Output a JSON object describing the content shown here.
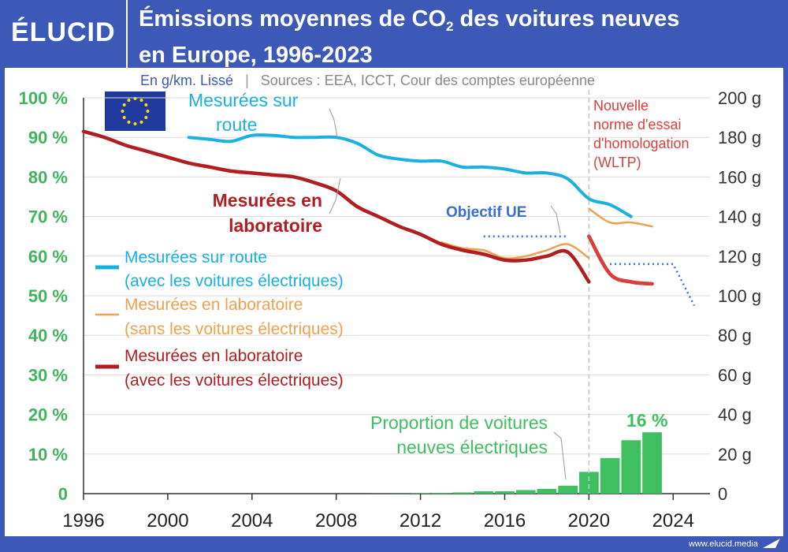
{
  "header": {
    "logo": "ÉLUCID",
    "title_part1": "Émissions moyennes de CO",
    "title_sub": "2",
    "title_part2": " des voitures neuves",
    "title_line2": "en Europe, 1996-2023"
  },
  "subtitle": {
    "unit_note": "En g/km. Lissé",
    "sources": "Sources : EEA, ICCT, Cour des comptes européenne"
  },
  "footer": {
    "url": "www.elucid.media"
  },
  "colors": {
    "brand_blue": "#3c59b8",
    "road": "#1ab0e0",
    "lab_no_ev": "#f0a050",
    "lab_with_ev": "#b11e22",
    "target": "#3a6ed0",
    "ev_share": "#3fbf5f",
    "wltp": "#d9403c",
    "percent_axis": "#3fb45c",
    "gram_axis": "#333333"
  },
  "chart_data": {
    "type": "line",
    "xlim": [
      1996,
      2025
    ],
    "x_ticks": [
      "1996",
      "2000",
      "2004",
      "2008",
      "2012",
      "2016",
      "2020",
      "2024"
    ],
    "y_right": {
      "label": "g/km",
      "lim": [
        0,
        200
      ],
      "ticks": [
        "0",
        "20 g",
        "40 g",
        "60 g",
        "80 g",
        "100 g",
        "120 g",
        "140 g",
        "160 g",
        "180 g",
        "200 g"
      ]
    },
    "y_left": {
      "label": "%",
      "lim": [
        0,
        100
      ],
      "ticks": [
        "0",
        "10 %",
        "20 %",
        "30 %",
        "40 %",
        "50 %",
        "60 %",
        "70 %",
        "80 %",
        "90 %",
        "100 %"
      ]
    },
    "grid": true,
    "series": [
      {
        "key": "road",
        "name": "Mesurées sur route (avec les voitures électriques)",
        "color": "#1ab0e0",
        "x": [
          2001,
          2002,
          2003,
          2004,
          2005,
          2006,
          2007,
          2008,
          2009,
          2010,
          2011,
          2012,
          2013,
          2014,
          2015,
          2016,
          2017,
          2018,
          2019,
          2020,
          2021,
          2022
        ],
        "y": [
          180,
          179,
          178,
          181,
          181,
          180,
          180,
          180,
          177,
          171,
          169,
          168,
          168,
          165,
          165,
          164,
          162,
          162,
          159,
          149,
          146,
          140
        ]
      },
      {
        "key": "lab_no_ev",
        "name": "Mesurées en laboratoire (sans les voitures électriques)",
        "color": "#f0a050",
        "segments": [
          {
            "x": [
              2013,
              2014,
              2015,
              2016,
              2017,
              2018,
              2019,
              2020
            ],
            "y": [
              127,
              124,
              123,
              119,
              120,
              123,
              126,
              119
            ]
          },
          {
            "x": [
              2020,
              2021,
              2022,
              2023
            ],
            "y": [
              144,
              137,
              137,
              135
            ]
          }
        ]
      },
      {
        "key": "lab_with_ev",
        "name": "Mesurées en laboratoire (avec les voitures électriques)",
        "color": "#b11e22",
        "segments": [
          {
            "x": [
              1996,
              1997,
              1998,
              1999,
              2000,
              2001,
              2002,
              2003,
              2004,
              2005,
              2006,
              2007,
              2008,
              2009,
              2010,
              2011,
              2012,
              2013,
              2014,
              2015,
              2016,
              2017,
              2018,
              2019,
              2020
            ],
            "y": [
              183,
              180,
              176,
              173,
              170,
              167,
              165,
              163,
              162,
              161,
              160,
              157,
              153,
              145,
              140,
              135,
              131,
              126,
              123,
              121,
              118,
              118,
              120,
              122,
              107
            ]
          },
          {
            "x": [
              2020,
              2021,
              2022,
              2023
            ],
            "y": [
              130,
              111,
              107,
              106
            ]
          }
        ]
      }
    ],
    "targets": {
      "name": "Objectif UE",
      "color": "#3a6ed0",
      "segments": [
        {
          "x": [
            2015,
            2019
          ],
          "y": [
            130,
            130
          ]
        },
        {
          "x": [
            2021,
            2024,
            2025
          ],
          "y": [
            116,
            116,
            95
          ]
        }
      ]
    },
    "ev_share": {
      "name": "Proportion de voitures neuves électriques",
      "axis": "left",
      "color": "#3fbf5f",
      "years": [
        2010,
        2011,
        2012,
        2013,
        2014,
        2015,
        2016,
        2017,
        2018,
        2019,
        2020,
        2021,
        2022,
        2023
      ],
      "values": [
        0.02,
        0.05,
        0.1,
        0.2,
        0.3,
        0.6,
        0.6,
        0.9,
        1.2,
        2,
        5.5,
        9,
        13.5,
        15.5
      ],
      "highlight_label": "16 %"
    },
    "wltp_marker": {
      "x": 2020,
      "label_lines": [
        "Nouvelle",
        "norme d'essai",
        "d'homologation",
        "(WLTP)"
      ]
    },
    "annotations": {
      "road_lines": [
        "Mesurées sur",
        "route"
      ],
      "lab_lines": [
        "Mesurées en",
        "laboratoire"
      ],
      "target": "Objectif UE",
      "ev_lines": [
        "Proportion de voitures",
        "neuves électriques"
      ]
    },
    "legend": {
      "placement": "middle-left",
      "items": [
        {
          "key": "road",
          "lines": [
            "Mesurées sur route",
            "(avec les voitures électriques)"
          ],
          "color": "#1ab0e0"
        },
        {
          "key": "lab_no_ev",
          "lines": [
            "Mesurées en laboratoire",
            "(sans les voitures électriques)"
          ],
          "color": "#f0a050"
        },
        {
          "key": "lab_with_ev",
          "lines": [
            "Mesurées en laboratoire",
            "(avec les voitures électriques)"
          ],
          "color": "#b11e22"
        }
      ]
    }
  }
}
